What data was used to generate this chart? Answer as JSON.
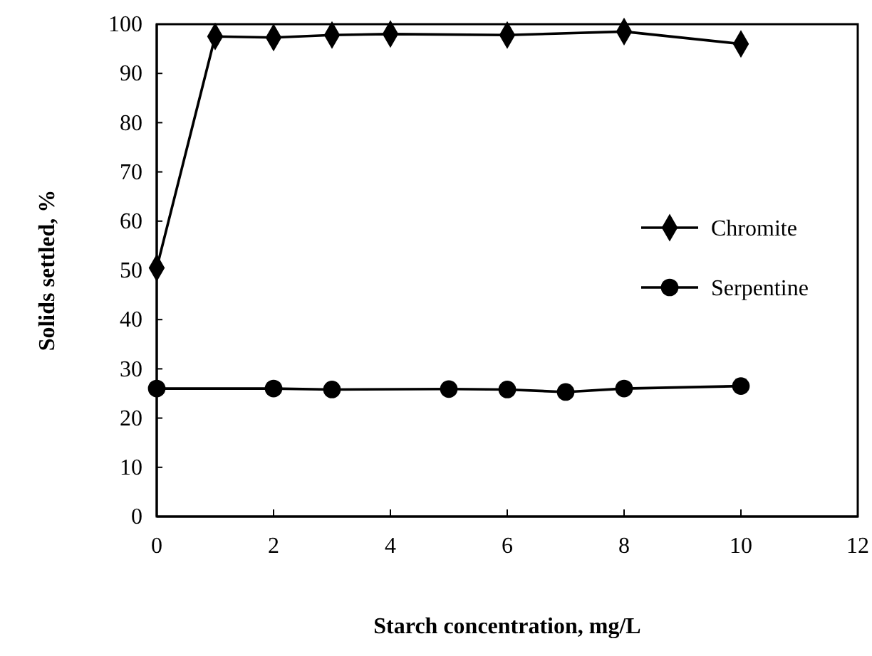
{
  "chart_data": {
    "type": "line",
    "xlabel": "Starch concentration, mg/L",
    "ylabel": "Solids settled, %",
    "xlim": [
      0,
      12
    ],
    "xticks": [
      0,
      2,
      4,
      6,
      8,
      10,
      12
    ],
    "ylim": [
      0,
      100
    ],
    "yticks": [
      0,
      10,
      20,
      30,
      40,
      50,
      60,
      70,
      80,
      90,
      100
    ],
    "grid": false,
    "legend": "right",
    "series": [
      {
        "name": "Chromite",
        "color": "#000000",
        "marker": "diamond",
        "x": [
          0,
          1,
          2,
          3,
          4,
          6,
          8,
          10
        ],
        "values": [
          50.5,
          97.5,
          97.3,
          97.8,
          98,
          97.8,
          98.5,
          96
        ]
      },
      {
        "name": "Serpentine",
        "color": "#000000",
        "marker": "circle",
        "x": [
          0,
          2,
          3,
          5,
          6,
          7,
          8,
          10
        ],
        "values": [
          26,
          26,
          25.8,
          25.9,
          25.8,
          25.3,
          26,
          26.5
        ]
      }
    ]
  }
}
